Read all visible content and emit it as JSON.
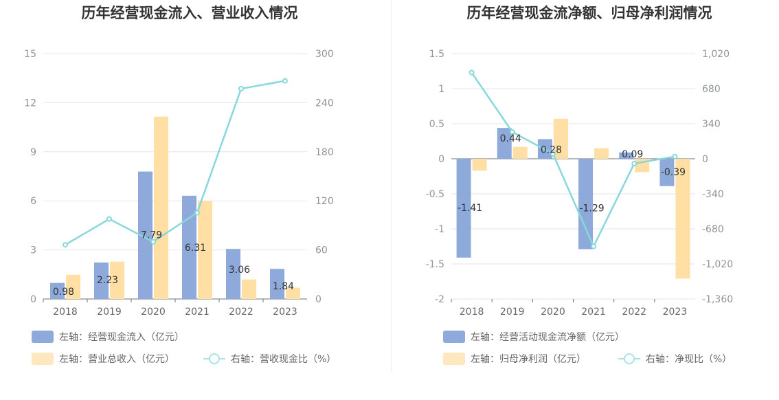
{
  "charts": [
    {
      "title": "历年经营现金流入、营业收入情况",
      "categories": [
        "2018",
        "2019",
        "2020",
        "2021",
        "2022",
        "2023"
      ],
      "left_ticks": [
        "15",
        "12",
        "9",
        "6",
        "3",
        "0"
      ],
      "right_ticks": [
        "300",
        "240",
        "180",
        "120",
        "60",
        "0"
      ],
      "legend": [
        {
          "label": "左轴：经营现金流入（亿元）",
          "color": "#8eaadb",
          "kind": "bar"
        },
        {
          "label": "左轴：营业总收入（亿元）",
          "color": "#ffdfa3",
          "kind": "bar"
        },
        {
          "label": "右轴：营收现金比（%）",
          "color": "#88d8db",
          "kind": "line"
        }
      ]
    },
    {
      "title": "历年经营现金流净额、归母净利润情况",
      "categories": [
        "2018",
        "2019",
        "2020",
        "2021",
        "2022",
        "2023"
      ],
      "left_ticks": [
        "1.5",
        "1",
        "0.5",
        "0",
        "-0.5",
        "-1",
        "-1.5",
        "-2"
      ],
      "right_ticks": [
        "1,020",
        "680",
        "340",
        "0",
        "-340",
        "-680",
        "-1,020",
        "-1,360"
      ],
      "legend": [
        {
          "label": "左轴：经营活动现金流净额（亿元）",
          "color": "#8eaadb",
          "kind": "bar"
        },
        {
          "label": "左轴：归母净利润（亿元）",
          "color": "#ffdfa3",
          "kind": "bar"
        },
        {
          "label": "右轴：净现比（%）",
          "color": "#88d8db",
          "kind": "line"
        }
      ]
    }
  ],
  "chart_data": [
    {
      "type": "bar",
      "title": "历年经营现金流入、营业收入情况",
      "categories": [
        "2018",
        "2019",
        "2020",
        "2021",
        "2022",
        "2023"
      ],
      "ylim_left": [
        0,
        15
      ],
      "ylim_right": [
        0,
        300
      ],
      "series": [
        {
          "name": "经营现金流入（亿元）",
          "axis": "left",
          "type": "bar",
          "color": "#8eaadb",
          "values": [
            0.98,
            2.23,
            7.79,
            6.31,
            3.06,
            1.84
          ],
          "labels": [
            "0.98",
            "2.23",
            "7.79",
            "6.31",
            "3.06",
            "1.84"
          ]
        },
        {
          "name": "营业总收入（亿元）",
          "axis": "left",
          "type": "bar",
          "color": "#ffdfa3",
          "values": [
            1.48,
            2.28,
            11.15,
            5.98,
            1.19,
            0.69
          ]
        },
        {
          "name": "营收现金比（%）",
          "axis": "right",
          "type": "line",
          "color": "#88d8db",
          "values": [
            66.2,
            97.8,
            69.9,
            105.5,
            257.1,
            266.7
          ]
        }
      ]
    },
    {
      "type": "bar",
      "title": "历年经营现金流净额、归母净利润情况",
      "categories": [
        "2018",
        "2019",
        "2020",
        "2021",
        "2022",
        "2023"
      ],
      "ylim_left": [
        -2,
        1.5
      ],
      "ylim_right": [
        -1360,
        1020
      ],
      "series": [
        {
          "name": "经营活动现金流净额（亿元）",
          "axis": "left",
          "type": "bar",
          "color": "#8eaadb",
          "values": [
            -1.41,
            0.44,
            0.28,
            -1.29,
            0.09,
            -0.39
          ],
          "labels": [
            "-1.41",
            "0.44",
            "0.28",
            "-1.29",
            "0.09",
            "-0.39"
          ]
        },
        {
          "name": "归母净利润（亿元）",
          "axis": "left",
          "type": "bar",
          "color": "#ffdfa3",
          "values": [
            -0.17,
            0.17,
            0.57,
            0.15,
            -0.19,
            -1.71
          ]
        },
        {
          "name": "净现比（%）",
          "axis": "right",
          "type": "line",
          "color": "#88d8db",
          "values": [
            836,
            260,
            48,
            -850,
            -47,
            22
          ]
        }
      ]
    }
  ]
}
